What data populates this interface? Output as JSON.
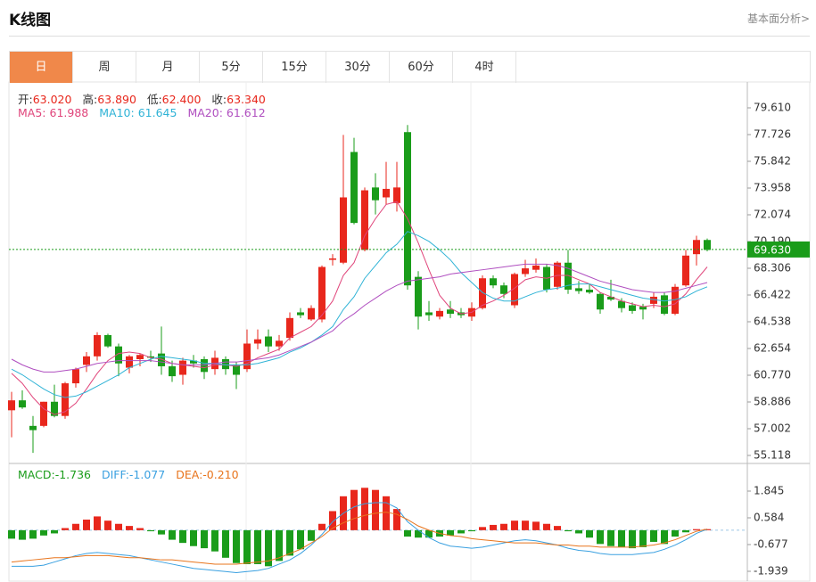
{
  "header": {
    "title": "K线图",
    "link": "基本面分析>"
  },
  "tabs": [
    "日",
    "周",
    "月",
    "5分",
    "15分",
    "30分",
    "60分",
    "4时"
  ],
  "active_tab": 0,
  "chart_data": [
    {
      "type": "candlestick",
      "info": [
        {
          "label": "开:",
          "value": "63.020"
        },
        {
          "label": "高:",
          "value": "63.890"
        },
        {
          "label": "低:",
          "value": "62.400"
        },
        {
          "label": "收:",
          "value": "63.340"
        }
      ],
      "up_color": "#e8271c",
      "down_color": "#1a9c1a",
      "open": [
        58.3,
        59.0,
        57.2,
        57.2,
        58.9,
        57.9,
        60.2,
        61.5,
        62.1,
        63.6,
        62.8,
        61.3,
        61.9,
        62.1,
        62.3,
        61.4,
        60.8,
        61.8,
        61.9,
        61.2,
        61.9,
        61.5,
        61.2,
        63.0,
        63.5,
        62.8,
        63.4,
        65.2,
        64.7,
        64.7,
        68.9,
        68.7,
        76.5,
        69.6,
        74.0,
        73.3,
        72.9,
        77.9,
        67.7,
        65.2,
        64.9,
        65.4,
        65.2,
        64.9,
        65.5,
        67.6,
        67.1,
        65.7,
        67.9,
        68.2,
        68.4,
        67.0,
        68.7,
        66.9,
        66.8,
        66.5,
        66.3,
        66.0,
        65.7,
        65.6,
        65.8,
        66.4,
        65.1,
        67.1,
        69.3,
        70.3
      ],
      "high": [
        59.6,
        59.7,
        57.9,
        58.9,
        60.1,
        60.3,
        61.3,
        62.4,
        63.8,
        63.7,
        63.0,
        62.2,
        62.3,
        62.5,
        64.2,
        61.8,
        62.0,
        62.2,
        62.1,
        62.5,
        62.1,
        61.7,
        64.0,
        64.0,
        64.0,
        63.6,
        65.2,
        65.5,
        65.7,
        68.5,
        69.3,
        77.7,
        77.5,
        74.0,
        75.0,
        75.8,
        75.8,
        78.4,
        68.1,
        66.0,
        65.5,
        66.0,
        65.5,
        65.9,
        67.8,
        67.8,
        67.3,
        68.0,
        68.9,
        69.0,
        68.6,
        68.8,
        69.6,
        67.4,
        67.2,
        66.6,
        67.5,
        66.2,
        65.9,
        65.8,
        66.6,
        66.6,
        67.2,
        69.6,
        70.6,
        70.4
      ],
      "low": [
        56.4,
        58.4,
        55.3,
        57.1,
        57.8,
        57.7,
        59.9,
        61.0,
        61.8,
        62.7,
        60.7,
        60.9,
        61.4,
        61.7,
        60.8,
        60.3,
        60.1,
        61.3,
        60.5,
        60.8,
        60.8,
        59.8,
        61.0,
        62.6,
        62.4,
        62.5,
        63.2,
        64.8,
        64.6,
        64.5,
        68.5,
        68.6,
        71.4,
        69.5,
        72.1,
        72.8,
        72.3,
        66.8,
        64.0,
        64.6,
        64.7,
        64.8,
        64.8,
        64.6,
        65.4,
        66.9,
        66.2,
        65.5,
        67.7,
        68.0,
        66.6,
        66.8,
        66.5,
        66.5,
        66.5,
        65.1,
        66.0,
        65.2,
        65.1,
        64.7,
        65.5,
        65.0,
        65.0,
        67.0,
        68.5,
        69.5
      ],
      "close": [
        59.0,
        58.5,
        56.9,
        58.9,
        57.9,
        60.2,
        61.2,
        62.1,
        63.6,
        62.8,
        61.6,
        62.1,
        62.2,
        62.0,
        61.4,
        60.7,
        61.8,
        61.6,
        61.0,
        62.0,
        61.2,
        60.8,
        63.0,
        63.3,
        62.8,
        63.2,
        64.8,
        65.0,
        65.5,
        68.4,
        69.0,
        73.3,
        71.5,
        73.8,
        73.1,
        73.9,
        74.0,
        67.1,
        64.9,
        65.0,
        65.3,
        65.1,
        65.0,
        65.5,
        67.6,
        67.1,
        66.5,
        67.9,
        68.3,
        68.5,
        66.8,
        68.7,
        66.8,
        66.7,
        66.6,
        65.4,
        66.1,
        65.5,
        65.3,
        65.4,
        66.3,
        65.1,
        67.0,
        69.2,
        70.3,
        69.6
      ],
      "ma": [
        {
          "label": "MA5:",
          "value_label": "61.988",
          "color": "#e0457b",
          "values": [
            60.9,
            60.2,
            59.2,
            58.4,
            58.0,
            58.2,
            58.8,
            59.8,
            60.9,
            61.8,
            62.3,
            62.4,
            62.3,
            62.0,
            61.9,
            61.6,
            61.5,
            61.4,
            61.3,
            61.5,
            61.5,
            61.4,
            61.6,
            62.0,
            62.3,
            62.6,
            63.4,
            63.8,
            64.2,
            65.0,
            66.0,
            67.8,
            68.7,
            70.6,
            71.8,
            72.8,
            73.0,
            71.8,
            70.1,
            68.2,
            66.4,
            65.5,
            65.1,
            65.2,
            65.7,
            66.0,
            66.4,
            66.9,
            67.5,
            67.7,
            67.6,
            67.8,
            67.8,
            67.5,
            67.2,
            66.6,
            66.3,
            66.0,
            65.8,
            65.6,
            65.7,
            65.6,
            65.8,
            66.5,
            67.5,
            68.4
          ]
        },
        {
          "label": "MA10:",
          "value_label": "61.645",
          "color": "#2fb3d6",
          "values": [
            61.2,
            60.8,
            60.3,
            59.8,
            59.4,
            59.2,
            59.3,
            59.6,
            60.0,
            60.4,
            60.8,
            61.3,
            61.6,
            61.9,
            62.1,
            62.0,
            61.9,
            61.8,
            61.6,
            61.6,
            61.5,
            61.5,
            61.5,
            61.6,
            61.8,
            62.0,
            62.4,
            62.7,
            63.1,
            63.6,
            64.2,
            65.4,
            66.3,
            67.6,
            68.5,
            69.4,
            70.0,
            70.9,
            70.6,
            70.2,
            69.6,
            68.9,
            68.0,
            67.3,
            66.6,
            66.2,
            66.0,
            66.0,
            66.3,
            66.6,
            66.8,
            66.9,
            67.1,
            67.2,
            67.2,
            67.0,
            66.8,
            66.6,
            66.4,
            66.2,
            66.1,
            66.0,
            66.1,
            66.3,
            66.7,
            67.0
          ]
        },
        {
          "label": "MA20:",
          "value_label": "61.612",
          "color": "#b04fc0",
          "values": [
            61.9,
            61.5,
            61.2,
            61.0,
            61.0,
            61.1,
            61.2,
            61.4,
            61.6,
            61.7,
            61.8,
            61.8,
            61.8,
            61.8,
            61.7,
            61.6,
            61.5,
            61.5,
            61.5,
            61.6,
            61.7,
            61.7,
            61.8,
            61.9,
            62.0,
            62.2,
            62.5,
            62.8,
            63.1,
            63.5,
            63.9,
            64.6,
            65.1,
            65.7,
            66.2,
            66.7,
            67.1,
            67.4,
            67.5,
            67.6,
            67.7,
            67.9,
            68.0,
            68.1,
            68.2,
            68.3,
            68.4,
            68.5,
            68.6,
            68.6,
            68.6,
            68.5,
            68.3,
            68.0,
            67.7,
            67.4,
            67.2,
            67.0,
            66.8,
            66.7,
            66.6,
            66.6,
            66.7,
            66.9,
            67.1,
            67.3
          ]
        }
      ],
      "last_price": {
        "value": 69.63,
        "label": "69.630",
        "color": "#1a9c1a"
      },
      "ylim": [
        54.678,
        81.243
      ],
      "yticks": [
        {
          "value": 79.61,
          "label": "79.610"
        },
        77.726,
        75.842,
        73.958,
        72.074,
        {
          "value": 70.19,
          "label": "70.190"
        },
        68.306,
        66.422,
        64.538,
        62.654,
        {
          "value": 60.77,
          "label": "60.770"
        },
        58.886,
        57.002,
        55.118
      ]
    },
    {
      "type": "macd",
      "histogram": {
        "label": "MACD:",
        "value_label": "-1.736",
        "up_color": "#e8271c",
        "down_color": "#1a9c1a",
        "values": [
          -0.4,
          -0.45,
          -0.4,
          -0.25,
          -0.15,
          0.1,
          0.3,
          0.5,
          0.65,
          0.45,
          0.3,
          0.2,
          0.1,
          -0.05,
          -0.2,
          -0.45,
          -0.6,
          -0.75,
          -0.85,
          -1.0,
          -1.3,
          -1.55,
          -1.6,
          -1.6,
          -1.7,
          -1.45,
          -1.2,
          -0.9,
          -0.5,
          0.3,
          0.9,
          1.6,
          1.9,
          2.0,
          1.9,
          1.6,
          1.0,
          -0.3,
          -0.35,
          -0.35,
          -0.3,
          -0.25,
          -0.15,
          -0.05,
          0.15,
          0.25,
          0.3,
          0.45,
          0.45,
          0.4,
          0.3,
          0.2,
          -0.05,
          -0.15,
          -0.35,
          -0.65,
          -0.75,
          -0.8,
          -0.85,
          -0.8,
          -0.55,
          -0.65,
          -0.3,
          -0.1,
          0.05,
          0.05
        ]
      },
      "lines": [
        {
          "label": "DIFF:",
          "value_label": "-1.077",
          "color": "#3aa0e0",
          "values": [
            -1.7,
            -1.7,
            -1.7,
            -1.65,
            -1.5,
            -1.35,
            -1.2,
            -1.1,
            -1.05,
            -1.1,
            -1.15,
            -1.2,
            -1.3,
            -1.4,
            -1.5,
            -1.6,
            -1.7,
            -1.8,
            -1.85,
            -1.9,
            -1.95,
            -2.0,
            -1.95,
            -1.9,
            -1.8,
            -1.6,
            -1.4,
            -1.1,
            -0.7,
            -0.2,
            0.4,
            0.8,
            1.1,
            1.25,
            1.3,
            1.3,
            1.05,
            0.4,
            0.0,
            -0.35,
            -0.6,
            -0.75,
            -0.8,
            -0.85,
            -0.8,
            -0.7,
            -0.6,
            -0.5,
            -0.45,
            -0.5,
            -0.6,
            -0.7,
            -0.85,
            -0.95,
            -1.0,
            -1.1,
            -1.15,
            -1.15,
            -1.15,
            -1.1,
            -1.05,
            -0.9,
            -0.7,
            -0.45,
            -0.15,
            0.05
          ]
        },
        {
          "label": "DEA:",
          "value_label": "-0.210",
          "color": "#e8741c",
          "values": [
            -1.5,
            -1.45,
            -1.4,
            -1.35,
            -1.3,
            -1.3,
            -1.25,
            -1.2,
            -1.2,
            -1.2,
            -1.25,
            -1.3,
            -1.3,
            -1.35,
            -1.4,
            -1.4,
            -1.45,
            -1.5,
            -1.55,
            -1.6,
            -1.6,
            -1.6,
            -1.55,
            -1.5,
            -1.45,
            -1.3,
            -1.1,
            -0.9,
            -0.6,
            -0.3,
            0.1,
            0.35,
            0.55,
            0.7,
            0.8,
            0.85,
            0.75,
            0.5,
            0.2,
            0.0,
            -0.15,
            -0.25,
            -0.3,
            -0.4,
            -0.45,
            -0.5,
            -0.55,
            -0.6,
            -0.6,
            -0.6,
            -0.65,
            -0.7,
            -0.7,
            -0.75,
            -0.75,
            -0.8,
            -0.8,
            -0.8,
            -0.8,
            -0.75,
            -0.7,
            -0.6,
            -0.45,
            -0.25,
            -0.05,
            0.05
          ]
        }
      ],
      "ylim": [
        -2.317,
        3.064
      ],
      "yticks": [
        1.845,
        0.584,
        -0.677,
        -1.939
      ]
    }
  ]
}
